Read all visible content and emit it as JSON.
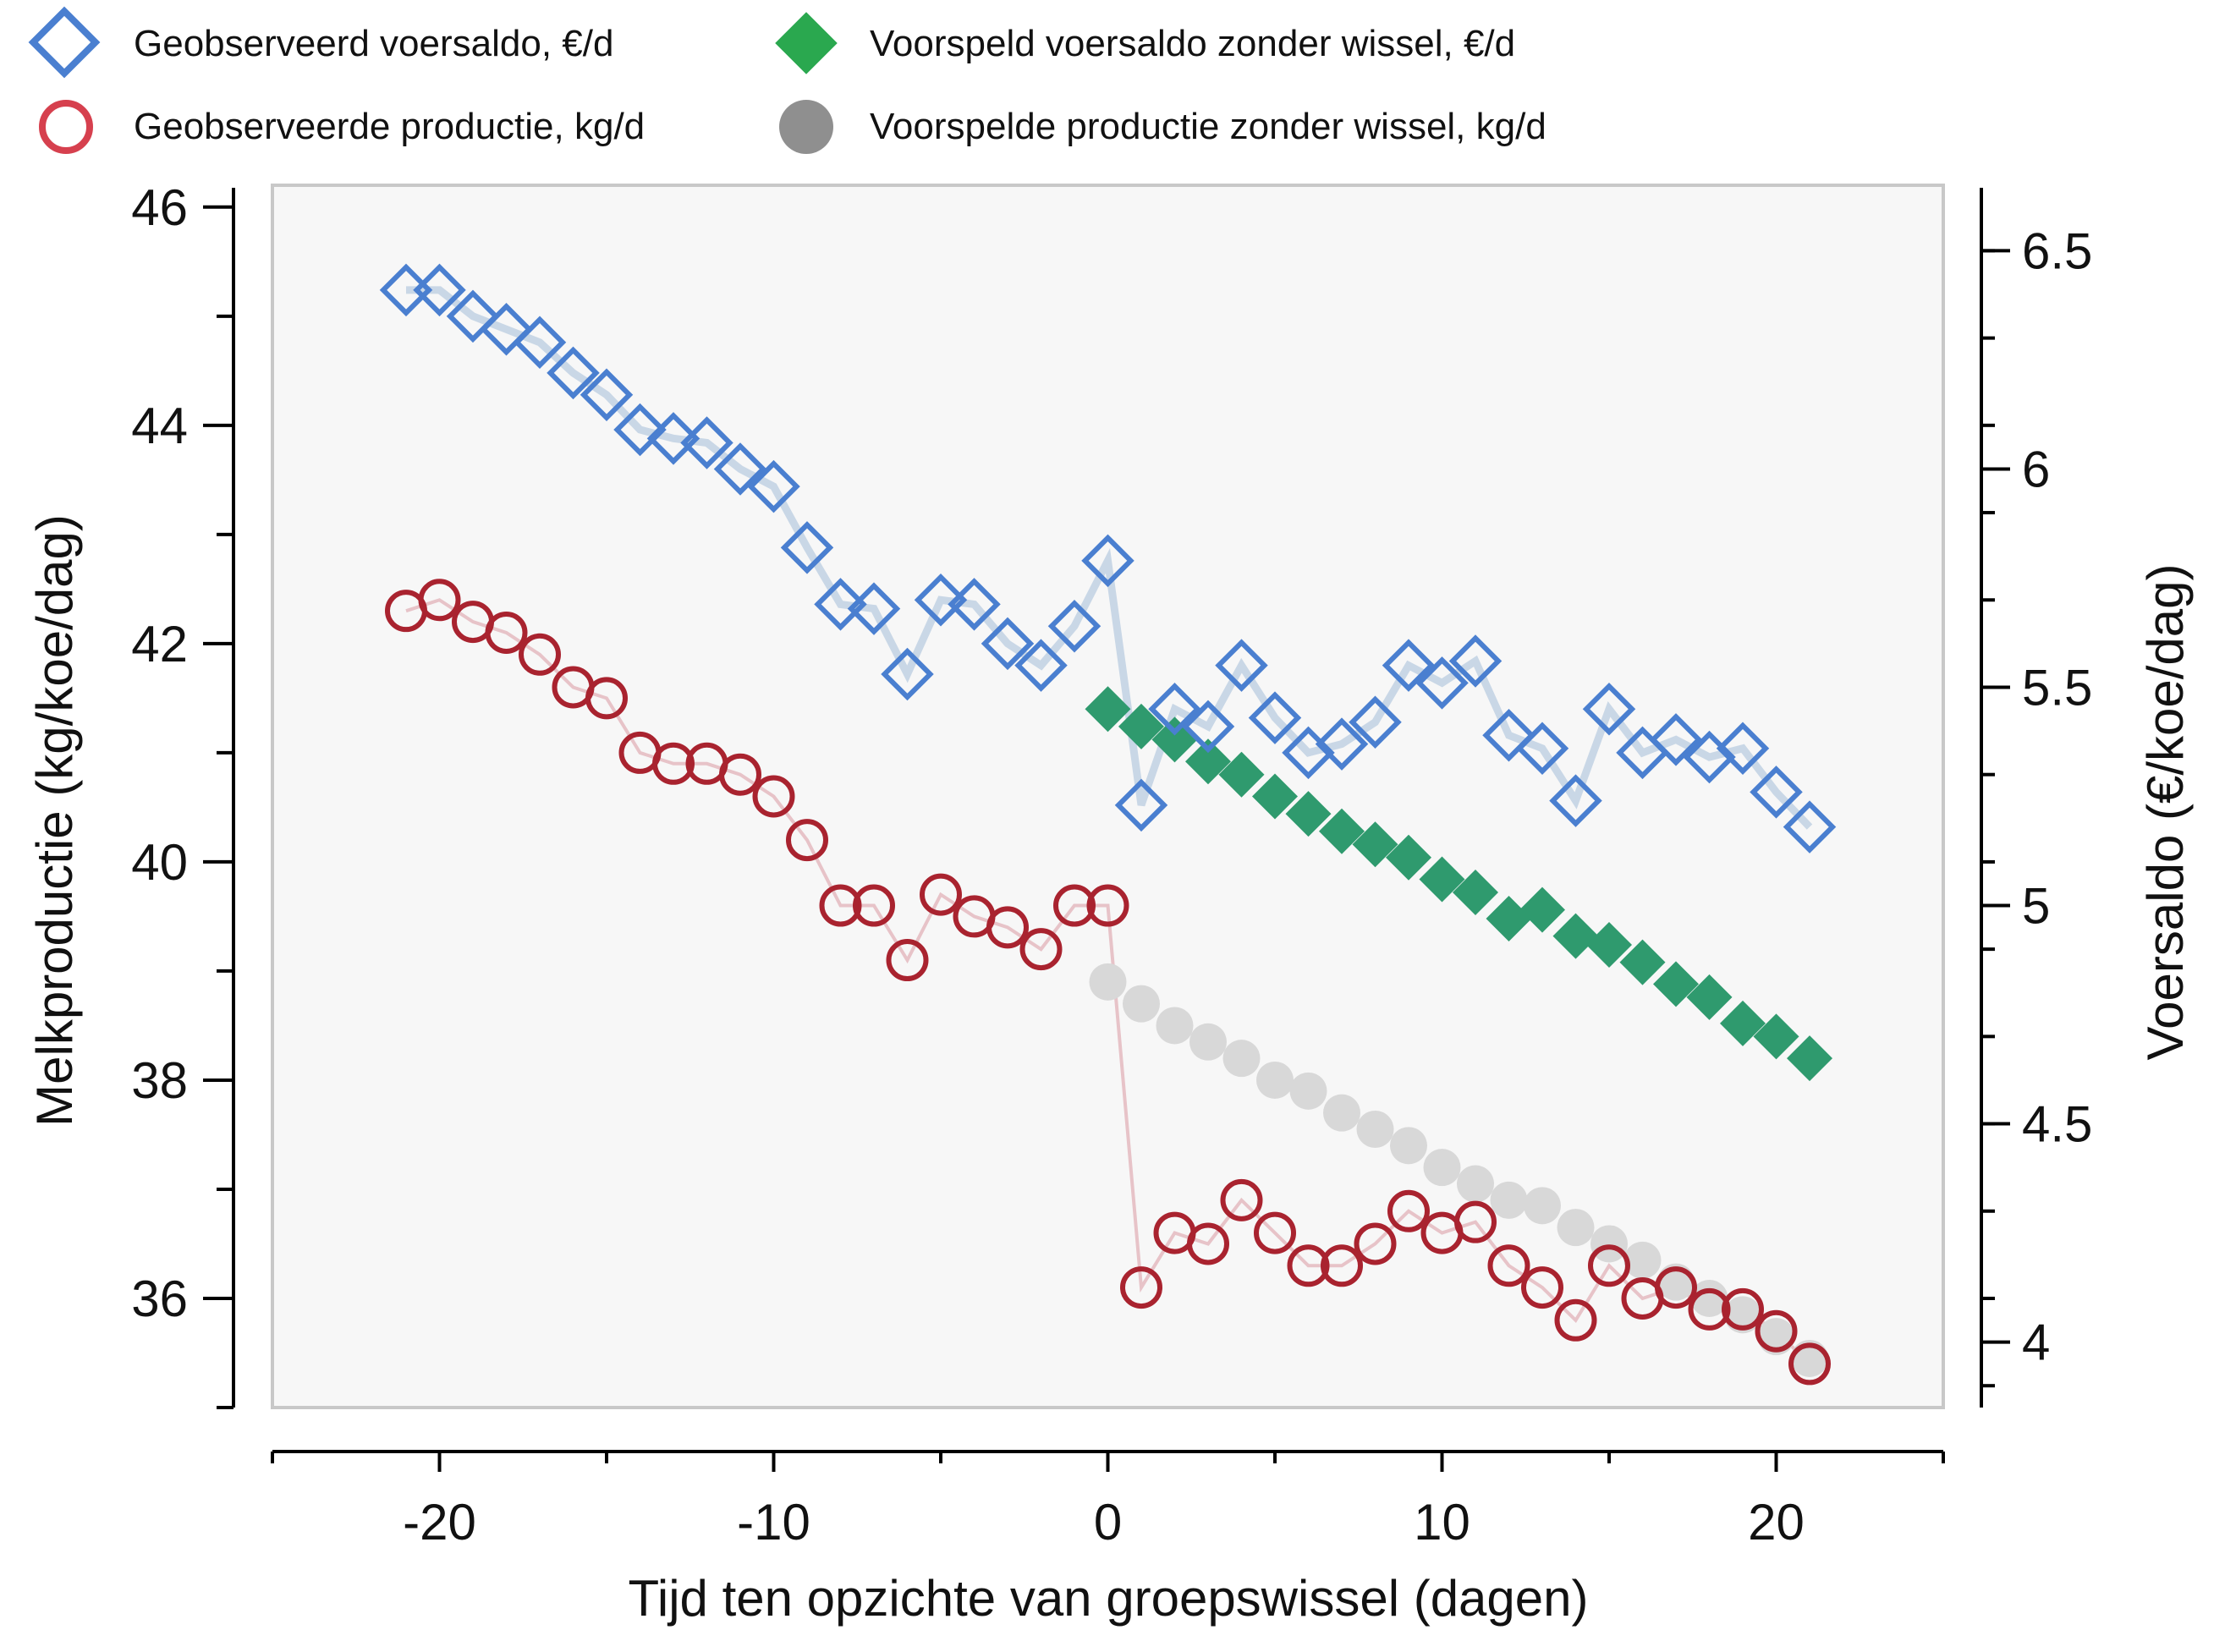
{
  "chart_data": {
    "type": "scatter",
    "xlabel": "Tijd ten opzichte van groepswissel (dagen)",
    "ylabel_left": "Melkproductie (kg/koe/dag)",
    "ylabel_right": "Voersaldo (€/koe/dag)",
    "xlim": [
      -25,
      25
    ],
    "ylim_left": [
      35,
      46.2
    ],
    "ylim_right": [
      3.85,
      6.65
    ],
    "xticks": [
      -20,
      -10,
      0,
      10,
      20
    ],
    "yticks_left": [
      36,
      38,
      40,
      42,
      44,
      46
    ],
    "yticks_right": [
      4,
      4.5,
      5,
      5.5,
      6,
      6.5
    ],
    "grid": false,
    "legend_position": "top",
    "series": [
      {
        "name": "Geobserveerd voersaldo, €/d",
        "axis": "right",
        "marker": "open-diamond",
        "color": "#4a7fd0",
        "line_color": "#c9d7e6",
        "x": [
          -21,
          -20,
          -19,
          -18,
          -17,
          -16,
          -15,
          -14,
          -13,
          -12,
          -11,
          -10,
          -9,
          -8,
          -7,
          -6,
          -5,
          -4,
          -3,
          -2,
          -1,
          0,
          1,
          2,
          3,
          4,
          5,
          6,
          7,
          8,
          9,
          10,
          11,
          12,
          13,
          14,
          15,
          16,
          17,
          18,
          19,
          20,
          21
        ],
        "y": [
          6.41,
          6.41,
          6.35,
          6.32,
          6.29,
          6.22,
          6.17,
          6.09,
          6.07,
          6.06,
          6.0,
          5.96,
          5.82,
          5.69,
          5.68,
          5.53,
          5.7,
          5.69,
          5.6,
          5.55,
          5.64,
          5.79,
          5.23,
          5.45,
          5.41,
          5.55,
          5.43,
          5.35,
          5.37,
          5.42,
          5.55,
          5.51,
          5.56,
          5.39,
          5.36,
          5.24,
          5.45,
          5.35,
          5.38,
          5.34,
          5.36,
          5.26,
          5.18
        ]
      },
      {
        "name": "Geobserveerde productie, kg/d",
        "axis": "left",
        "marker": "open-circle",
        "color": "#a9232f",
        "line_color": "#e7c3c8",
        "x": [
          -21,
          -20,
          -19,
          -18,
          -17,
          -16,
          -15,
          -14,
          -13,
          -12,
          -11,
          -10,
          -9,
          -8,
          -7,
          -6,
          -5,
          -4,
          -3,
          -2,
          -1,
          0,
          1,
          2,
          3,
          4,
          5,
          6,
          7,
          8,
          9,
          10,
          11,
          12,
          13,
          14,
          15,
          16,
          17,
          18,
          19,
          20,
          21
        ],
        "y": [
          42.3,
          42.4,
          42.2,
          42.1,
          41.9,
          41.6,
          41.5,
          41.0,
          40.9,
          40.9,
          40.8,
          40.6,
          40.2,
          39.6,
          39.6,
          39.1,
          39.7,
          39.5,
          39.4,
          39.2,
          39.6,
          39.6,
          36.1,
          36.6,
          36.5,
          36.9,
          36.6,
          36.3,
          36.3,
          36.5,
          36.8,
          36.6,
          36.7,
          36.3,
          36.1,
          35.8,
          36.3,
          36.0,
          36.1,
          35.9,
          35.9,
          35.7,
          35.4
        ]
      },
      {
        "name": "Voorspeld voersaldo zonder wissel, €/d",
        "axis": "right",
        "marker": "filled-diamond",
        "color": "#2f9a6e",
        "x": [
          0,
          1,
          2,
          3,
          4,
          5,
          6,
          7,
          8,
          9,
          10,
          11,
          12,
          13,
          14,
          15,
          16,
          17,
          18,
          19,
          20,
          21
        ],
        "y": [
          5.45,
          5.41,
          5.38,
          5.33,
          5.3,
          5.25,
          5.21,
          5.17,
          5.14,
          5.11,
          5.06,
          5.03,
          4.97,
          4.99,
          4.93,
          4.91,
          4.87,
          4.82,
          4.79,
          4.73,
          4.7,
          4.65
        ]
      },
      {
        "name": "Voorspelde productie zonder wissel, kg/d",
        "axis": "left",
        "marker": "filled-circle",
        "color": "#d8d8d8",
        "x": [
          0,
          1,
          2,
          3,
          4,
          5,
          6,
          7,
          8,
          9,
          10,
          11,
          12,
          13,
          14,
          15,
          16,
          17,
          18,
          19,
          20,
          21
        ],
        "y": [
          38.9,
          38.7,
          38.5,
          38.35,
          38.2,
          38.0,
          37.9,
          37.7,
          37.55,
          37.4,
          37.2,
          37.05,
          36.9,
          36.85,
          36.65,
          36.5,
          36.35,
          36.15,
          36.0,
          35.85,
          35.65,
          35.45
        ]
      }
    ]
  }
}
